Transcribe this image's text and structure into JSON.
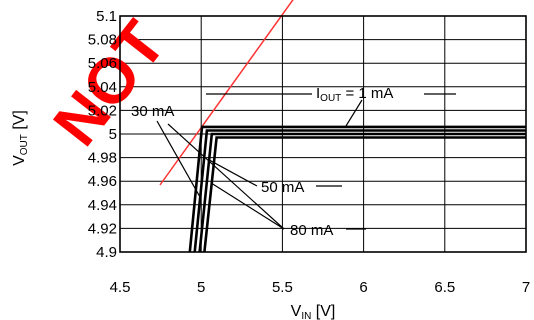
{
  "watermark": "NOT",
  "chart_data": {
    "type": "line",
    "xlabel": {
      "main": "V",
      "sub": "IN",
      "unit": " [V]"
    },
    "ylabel": {
      "main": "V",
      "sub": "OUT",
      "unit": " [V]"
    },
    "xlim": [
      4.5,
      7
    ],
    "ylim": [
      4.9,
      5.1
    ],
    "xticks": [
      4.5,
      5,
      5.5,
      6,
      6.5,
      7
    ],
    "xtick_labels": [
      "4.5",
      "5",
      "5.5",
      "6",
      "6.5",
      "7"
    ],
    "yticks": [
      4.9,
      4.92,
      4.94,
      4.96,
      4.98,
      5,
      5.02,
      5.04,
      5.06,
      5.08,
      5.1
    ],
    "ytick_labels": [
      "4.9",
      "4.92",
      "4.94",
      "4.96",
      "4.98",
      "5",
      "5.02",
      "5.04",
      "5.06",
      "5.08",
      "5.1"
    ],
    "grid": true,
    "series": [
      {
        "name": "IOUT = 1 mA",
        "x": [
          4.93,
          5.005,
          7
        ],
        "y": [
          4.9,
          5.006,
          5.006
        ]
      },
      {
        "name": "30 mA",
        "x": [
          4.96,
          5.035,
          7
        ],
        "y": [
          4.9,
          5.003,
          5.003
        ]
      },
      {
        "name": "50 mA",
        "x": [
          4.99,
          5.065,
          7
        ],
        "y": [
          4.9,
          5.0,
          5.0
        ]
      },
      {
        "name": "80 mA",
        "x": [
          5.02,
          5.095,
          7
        ],
        "y": [
          4.9,
          4.997,
          4.997
        ]
      }
    ],
    "annotations": [
      {
        "label_main": "I",
        "label_sub": "OUT",
        "label_rest": " = 1 mA",
        "series": 0
      },
      {
        "label_main": "30 mA",
        "series": 1
      },
      {
        "label_main": "50 mA",
        "series": 2
      },
      {
        "label_main": "80 mA",
        "series": 3
      }
    ]
  }
}
